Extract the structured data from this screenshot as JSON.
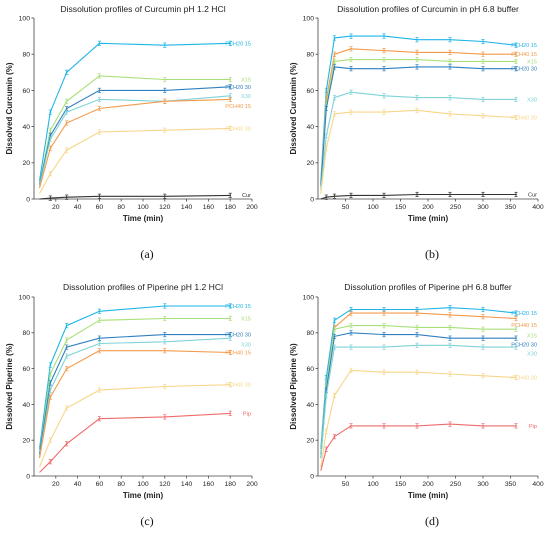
{
  "colors": {
    "PCH20 15": "#1fb4e6",
    "PCH20 30": "#2f7fbf",
    "PCH40 15": "#f39a4a",
    "PCH40 30": "#f7d68a",
    "X15": "#a8e07a",
    "X30": "#7fd3d8",
    "Cur": "#333333",
    "Pip": "#ef6b6b"
  },
  "chart_data": [
    {
      "panel": "(a)",
      "type": "line",
      "title": "Dissolution profiles of Curcumin pH 1.2 HCl",
      "xlabel": "Time (min)",
      "ylabel": "Dissolved Curcumin (%)",
      "xlim": [
        0,
        200
      ],
      "ylim": [
        0,
        100
      ],
      "xticks": [
        20,
        40,
        60,
        80,
        100,
        120,
        140,
        160,
        180,
        200
      ],
      "yticks": [
        0,
        20,
        40,
        60,
        80,
        100
      ],
      "x": [
        5,
        15,
        30,
        60,
        120,
        180
      ],
      "series": [
        {
          "name": "PCH20 15",
          "values": [
            10,
            48,
            70,
            86,
            85,
            86
          ]
        },
        {
          "name": "X15",
          "values": [
            8,
            38,
            54,
            68,
            66,
            66
          ]
        },
        {
          "name": "PCH20 30",
          "values": [
            8,
            35,
            50,
            60,
            60,
            62
          ]
        },
        {
          "name": "X30",
          "values": [
            7,
            33,
            48,
            55,
            54,
            57
          ]
        },
        {
          "name": "PCH40 15",
          "values": [
            6,
            28,
            42,
            50,
            54,
            55
          ]
        },
        {
          "name": "PCH40 30",
          "values": [
            3,
            14,
            27,
            37,
            38,
            39
          ]
        },
        {
          "name": "Cur",
          "values": [
            0,
            0.5,
            1,
            1.5,
            1.5,
            2
          ]
        }
      ]
    },
    {
      "panel": "(b)",
      "type": "line",
      "title": "Dissolution profiles of Curcumin in pH 6.8 buffer",
      "xlabel": "Time (min)",
      "ylabel": "Dissolved Curcumin (%)",
      "xlim": [
        0,
        400
      ],
      "ylim": [
        0,
        100
      ],
      "xticks": [
        50,
        100,
        150,
        200,
        250,
        300,
        350,
        400
      ],
      "yticks": [
        0,
        20,
        40,
        60,
        80,
        100
      ],
      "x": [
        5,
        15,
        30,
        60,
        120,
        180,
        240,
        300,
        360
      ],
      "series": [
        {
          "name": "PCH20 15",
          "values": [
            10,
            60,
            89,
            90,
            90,
            88,
            88,
            87,
            85
          ]
        },
        {
          "name": "PCH40 15",
          "values": [
            8,
            55,
            80,
            83,
            82,
            81,
            81,
            80,
            80
          ]
        },
        {
          "name": "X15",
          "values": [
            8,
            52,
            76,
            77,
            77,
            77,
            76,
            76,
            76
          ]
        },
        {
          "name": "PCH20 30",
          "values": [
            7,
            50,
            73,
            72,
            72,
            73,
            73,
            72,
            72
          ]
        },
        {
          "name": "X30",
          "values": [
            5,
            35,
            56,
            59,
            57,
            56,
            56,
            55,
            55
          ]
        },
        {
          "name": "PCH40 30",
          "values": [
            3,
            28,
            47,
            48,
            48,
            49,
            47,
            46,
            45
          ]
        },
        {
          "name": "Cur",
          "values": [
            0,
            1,
            1.5,
            2,
            2,
            2.5,
            2.5,
            2.5,
            2.5
          ]
        }
      ]
    },
    {
      "panel": "(c)",
      "type": "line",
      "title": "Dissolution profiles of Piperine pH 1.2 HCl",
      "xlabel": "Time (min)",
      "ylabel": "Dissolved Piperine (%)",
      "xlim": [
        0,
        200
      ],
      "ylim": [
        0,
        100
      ],
      "xticks": [
        20,
        40,
        60,
        80,
        100,
        120,
        140,
        160,
        180,
        200
      ],
      "yticks": [
        0,
        20,
        40,
        60,
        80,
        100
      ],
      "x": [
        5,
        15,
        30,
        60,
        120,
        180
      ],
      "series": [
        {
          "name": "PCH20 15",
          "values": [
            15,
            62,
            84,
            92,
            95,
            95
          ]
        },
        {
          "name": "X15",
          "values": [
            12,
            57,
            76,
            87,
            88,
            88
          ]
        },
        {
          "name": "PCH20 30",
          "values": [
            12,
            52,
            72,
            77,
            79,
            79
          ]
        },
        {
          "name": "X30",
          "values": [
            10,
            48,
            67,
            74,
            75,
            77
          ]
        },
        {
          "name": "PCH40 15",
          "values": [
            10,
            44,
            60,
            70,
            70,
            69
          ]
        },
        {
          "name": "PCH40 30",
          "values": [
            5,
            20,
            38,
            48,
            50,
            51
          ]
        },
        {
          "name": "Pip",
          "values": [
            2,
            8,
            18,
            32,
            33,
            35
          ]
        }
      ]
    },
    {
      "panel": "(d)",
      "type": "line",
      "title": "Dissolution profiles of Piperine pH 6.8 buffer",
      "xlabel": "Time (min)",
      "ylabel": "Dissolved Piperine (%)",
      "xlim": [
        0,
        400
      ],
      "ylim": [
        0,
        100
      ],
      "xticks": [
        50,
        100,
        150,
        200,
        250,
        300,
        350,
        400
      ],
      "yticks": [
        0,
        20,
        40,
        60,
        80,
        100
      ],
      "x": [
        5,
        15,
        30,
        60,
        120,
        180,
        240,
        300,
        360
      ],
      "series": [
        {
          "name": "PCH20 15",
          "values": [
            15,
            55,
            87,
            93,
            93,
            93,
            94,
            93,
            91
          ]
        },
        {
          "name": "PCH40 15",
          "values": [
            12,
            50,
            83,
            91,
            91,
            91,
            90,
            89,
            88
          ]
        },
        {
          "name": "X15",
          "values": [
            12,
            50,
            82,
            84,
            84,
            83,
            83,
            82,
            82
          ]
        },
        {
          "name": "PCH20 30",
          "values": [
            10,
            48,
            78,
            80,
            79,
            79,
            77,
            77,
            77
          ]
        },
        {
          "name": "X30",
          "values": [
            10,
            45,
            72,
            72,
            72,
            73,
            73,
            72,
            72
          ]
        },
        {
          "name": "PCH40 30",
          "values": [
            5,
            25,
            45,
            59,
            58,
            58,
            57,
            56,
            55
          ]
        },
        {
          "name": "Pip",
          "values": [
            3,
            15,
            22,
            28,
            28,
            28,
            29,
            28,
            28
          ]
        }
      ]
    }
  ]
}
